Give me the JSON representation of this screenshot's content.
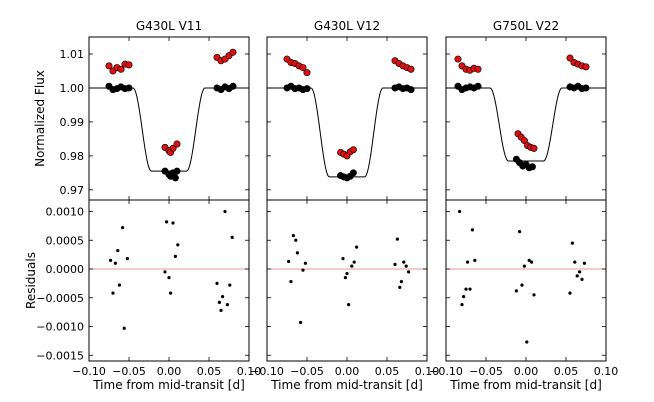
{
  "chart_data": {
    "type": "scatter",
    "ylabel_flux": "Normalized Flux",
    "ylabel_residuals": "Residuals",
    "xlabel": "Time from mid-transit [d]",
    "xlim": [
      -0.1,
      0.1
    ],
    "flux_ylim": [
      0.967,
      1.015
    ],
    "residual_ylim": [
      -0.0016,
      0.0012
    ],
    "x_ticks": [
      -0.1,
      -0.05,
      0.0,
      0.05,
      0.1
    ],
    "x_tick_labels": [
      "−0.10",
      "−0.05",
      "0.00",
      "0.05",
      "0.10"
    ],
    "flux_ticks": [
      0.97,
      0.98,
      0.99,
      1.0,
      1.01
    ],
    "flux_tick_labels": [
      "0.97",
      "0.98",
      "0.99",
      "1.00",
      "1.01"
    ],
    "residual_ticks": [
      -0.0015,
      -0.001,
      -0.0005,
      0.0,
      0.0005,
      0.001
    ],
    "residual_tick_labels": [
      "−0.0015",
      "−0.0010",
      "−0.0005",
      "0.0000",
      "0.0005",
      "0.0010"
    ],
    "colors": {
      "raw": "#dd1111",
      "corrected": "#000000",
      "model": "#000000",
      "zero_line": "#e07070"
    },
    "panels": [
      {
        "title": "G430L V11",
        "model": {
          "depth": 0.0245,
          "t1": 0.045,
          "t2": 0.022
        },
        "raw": [
          [
            -0.075,
            1.0065
          ],
          [
            -0.07,
            1.005
          ],
          [
            -0.065,
            1.006
          ],
          [
            -0.06,
            1.0055
          ],
          [
            -0.055,
            1.007
          ],
          [
            -0.05,
            1.0068
          ],
          [
            -0.005,
            0.9825
          ],
          [
            0.0,
            0.9815
          ],
          [
            0.002,
            0.981
          ],
          [
            0.005,
            0.9822
          ],
          [
            0.01,
            0.9835
          ],
          [
            0.06,
            1.009
          ],
          [
            0.065,
            1.008
          ],
          [
            0.07,
            1.0085
          ],
          [
            0.075,
            1.0095
          ],
          [
            0.08,
            1.0105
          ]
        ],
        "corrected": [
          [
            -0.075,
            1.0005
          ],
          [
            -0.07,
            0.9995
          ],
          [
            -0.065,
            0.9998
          ],
          [
            -0.06,
            1.0003
          ],
          [
            -0.055,
            0.9998
          ],
          [
            -0.05,
            1.0
          ],
          [
            -0.005,
            0.9755
          ],
          [
            0.0,
            0.9745
          ],
          [
            0.002,
            0.974
          ],
          [
            0.005,
            0.975
          ],
          [
            0.008,
            0.9735
          ],
          [
            0.01,
            0.9755
          ],
          [
            0.06,
            1.0
          ],
          [
            0.065,
            0.9995
          ],
          [
            0.07,
            1.0003
          ],
          [
            0.075,
            0.9998
          ],
          [
            0.08,
            1.0005
          ]
        ],
        "residuals": [
          [
            -0.073,
            0.00015
          ],
          [
            -0.07,
            -0.00042
          ],
          [
            -0.067,
            0.0001
          ],
          [
            -0.064,
            0.00032
          ],
          [
            -0.062,
            -0.00028
          ],
          [
            -0.058,
            0.00072
          ],
          [
            -0.056,
            -0.00103
          ],
          [
            -0.052,
            0.00018
          ],
          [
            -0.005,
            -5e-05
          ],
          [
            -0.003,
            0.00082
          ],
          [
            0.0,
            -0.00015
          ],
          [
            0.002,
            -0.00042
          ],
          [
            0.005,
            0.0008
          ],
          [
            0.008,
            0.00022
          ],
          [
            0.011,
            0.00042
          ],
          [
            0.06,
            -0.00025
          ],
          [
            0.063,
            -0.00058
          ],
          [
            0.065,
            -0.00072
          ],
          [
            0.067,
            -0.00048
          ],
          [
            0.07,
            0.001
          ],
          [
            0.073,
            -0.00062
          ],
          [
            0.076,
            -0.00028
          ],
          [
            0.079,
            0.00055
          ]
        ]
      },
      {
        "title": "G430L V12",
        "model": {
          "depth": 0.0262,
          "t1": 0.045,
          "t2": 0.022
        },
        "raw": [
          [
            -0.075,
            1.0085
          ],
          [
            -0.07,
            1.0075
          ],
          [
            -0.065,
            1.0072
          ],
          [
            -0.06,
            1.0065
          ],
          [
            -0.055,
            1.006
          ],
          [
            -0.05,
            1.0045
          ],
          [
            -0.008,
            0.981
          ],
          [
            -0.004,
            0.9805
          ],
          [
            0.0,
            0.98
          ],
          [
            0.004,
            0.9812
          ],
          [
            0.008,
            0.9818
          ],
          [
            0.06,
            1.008
          ],
          [
            0.065,
            1.0072
          ],
          [
            0.07,
            1.0065
          ],
          [
            0.075,
            1.006
          ],
          [
            0.08,
            1.0055
          ]
        ],
        "corrected": [
          [
            -0.075,
            1.0
          ],
          [
            -0.07,
            1.0005
          ],
          [
            -0.065,
            0.9998
          ],
          [
            -0.06,
            1.0
          ],
          [
            -0.055,
            0.9995
          ],
          [
            -0.05,
            0.9998
          ],
          [
            -0.008,
            0.9742
          ],
          [
            -0.004,
            0.9738
          ],
          [
            0.0,
            0.9735
          ],
          [
            0.004,
            0.974
          ],
          [
            0.008,
            0.975
          ],
          [
            0.06,
            1.0
          ],
          [
            0.065,
            1.0003
          ],
          [
            0.07,
            0.9998
          ],
          [
            0.075,
            1.0
          ],
          [
            0.08,
            0.9995
          ]
        ],
        "residuals": [
          [
            -0.073,
            0.00013
          ],
          [
            -0.07,
            -0.00022
          ],
          [
            -0.067,
            0.00058
          ],
          [
            -0.064,
            0.0005
          ],
          [
            -0.062,
            0.00028
          ],
          [
            -0.058,
            -0.00093
          ],
          [
            -0.055,
            -2e-05
          ],
          [
            -0.052,
            0.0001
          ],
          [
            -0.005,
            0.00018
          ],
          [
            -0.002,
            -0.00015
          ],
          [
            0.0,
            -8e-05
          ],
          [
            0.002,
            -0.00062
          ],
          [
            0.006,
            5e-05
          ],
          [
            0.009,
            0.00012
          ],
          [
            0.012,
            0.00038
          ],
          [
            0.06,
            8e-05
          ],
          [
            0.063,
            0.00052
          ],
          [
            0.066,
            -0.00032
          ],
          [
            0.068,
            -0.00022
          ],
          [
            0.071,
            0.00012
          ],
          [
            0.074,
            5e-05
          ],
          [
            0.077,
            -5e-05
          ]
        ]
      },
      {
        "title": "G750L V22",
        "model": {
          "depth": 0.0215,
          "t1": 0.045,
          "t2": 0.022
        },
        "raw": [
          [
            -0.085,
            1.0085
          ],
          [
            -0.08,
            1.0065
          ],
          [
            -0.075,
            1.0055
          ],
          [
            -0.07,
            1.0052
          ],
          [
            -0.065,
            1.0058
          ],
          [
            -0.06,
            1.0055
          ],
          [
            -0.01,
            0.9865
          ],
          [
            -0.006,
            0.9855
          ],
          [
            -0.002,
            0.9845
          ],
          [
            0.002,
            0.983
          ],
          [
            0.006,
            0.9825
          ],
          [
            0.01,
            0.9822
          ],
          [
            0.055,
            1.0088
          ],
          [
            0.06,
            1.0075
          ],
          [
            0.065,
            1.007
          ],
          [
            0.07,
            1.0065
          ],
          [
            0.075,
            1.0062
          ]
        ],
        "corrected": [
          [
            -0.085,
            1.0005
          ],
          [
            -0.08,
            0.9995
          ],
          [
            -0.075,
            1.0
          ],
          [
            -0.07,
            1.0003
          ],
          [
            -0.065,
            1.0
          ],
          [
            -0.06,
            1.0005
          ],
          [
            -0.012,
            0.979
          ],
          [
            -0.008,
            0.978
          ],
          [
            -0.004,
            0.977
          ],
          [
            0.0,
            0.9775
          ],
          [
            0.004,
            0.9765
          ],
          [
            0.008,
            0.9768
          ],
          [
            0.055,
            1.0003
          ],
          [
            0.06,
            1.0
          ],
          [
            0.065,
            1.0005
          ],
          [
            0.07,
            0.9998
          ],
          [
            0.075,
            1.0
          ]
        ],
        "residuals": [
          [
            -0.083,
            0.001
          ],
          [
            -0.08,
            -0.00062
          ],
          [
            -0.078,
            -0.00048
          ],
          [
            -0.075,
            -0.00035
          ],
          [
            -0.073,
            0.00012
          ],
          [
            -0.07,
            -0.00035
          ],
          [
            -0.067,
            0.00068
          ],
          [
            -0.064,
            0.00015
          ],
          [
            -0.012,
            -0.00038
          ],
          [
            -0.008,
            0.00065
          ],
          [
            -0.005,
            -0.00028
          ],
          [
            -0.002,
            5e-05
          ],
          [
            0.001,
            -0.00127
          ],
          [
            0.004,
            0.00015
          ],
          [
            0.007,
            0.00012
          ],
          [
            0.01,
            -0.00045
          ],
          [
            0.055,
            -0.00042
          ],
          [
            0.058,
            0.00045
          ],
          [
            0.061,
            0.00012
          ],
          [
            0.064,
            -0.00012
          ],
          [
            0.067,
            -5e-05
          ],
          [
            0.07,
            -0.00018
          ],
          [
            0.073,
            0.0001
          ]
        ]
      }
    ]
  }
}
